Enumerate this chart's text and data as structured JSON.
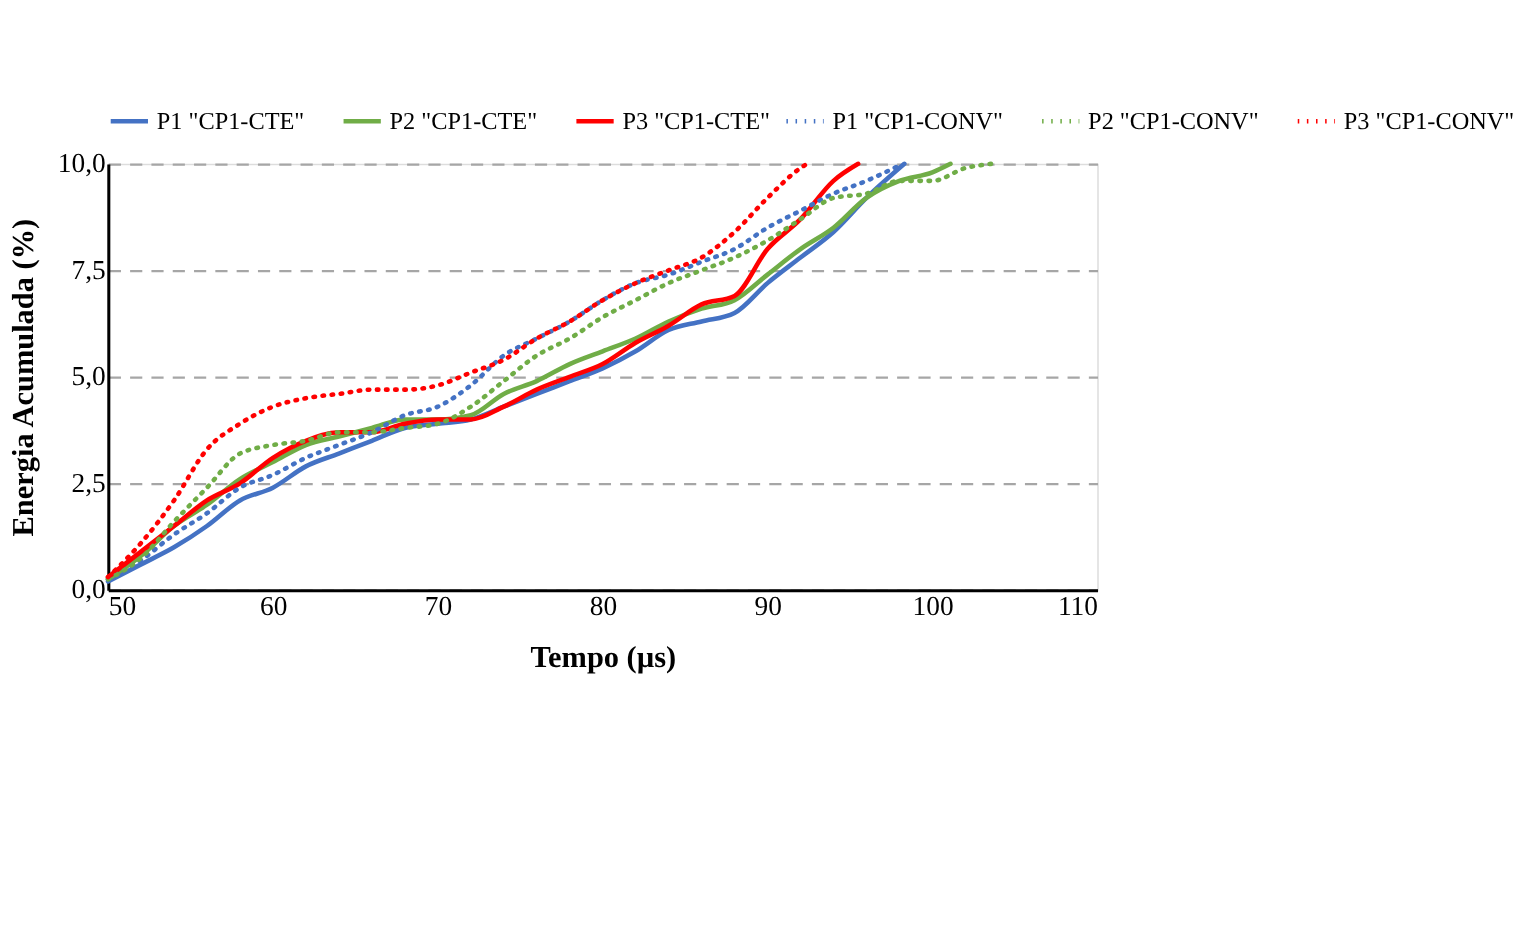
{
  "chart_data": {
    "type": "line",
    "xlabel": "Tempo (µs)",
    "ylabel": "Energia Acumulada (%)",
    "xlim": [
      50,
      110
    ],
    "xticks": [
      50,
      60,
      70,
      80,
      90,
      100,
      110
    ],
    "ylim": [
      0,
      10
    ],
    "yticks": [
      {
        "value": 0,
        "label": "0,0"
      },
      {
        "value": 2.5,
        "label": "2,5"
      },
      {
        "value": 5,
        "label": "5,0"
      },
      {
        "value": 7.5,
        "label": "7,5"
      },
      {
        "value": 10,
        "label": "10,0"
      }
    ],
    "grid": "y",
    "legend": "top",
    "marker": "none",
    "series": [
      {
        "name": "P1 \"CP1-CTE\"",
        "color": "#4472c4",
        "line_style": "solid",
        "x": [
          50,
          52,
          54,
          56,
          58,
          60,
          62,
          64,
          66,
          68,
          70,
          72,
          74,
          76,
          78,
          80,
          82,
          84,
          86,
          88,
          90,
          92,
          94,
          96,
          98.3
        ],
        "values": [
          0.2,
          0.6,
          1.0,
          1.5,
          2.1,
          2.4,
          2.9,
          3.2,
          3.5,
          3.8,
          3.9,
          4.0,
          4.3,
          4.6,
          4.9,
          5.2,
          5.6,
          6.1,
          6.3,
          6.5,
          7.2,
          7.8,
          8.4,
          9.2,
          10.0
        ]
      },
      {
        "name": "P2 \"CP1-CTE\"",
        "color": "#70ad47",
        "line_style": "solid",
        "x": [
          50,
          52,
          54,
          56,
          58,
          60,
          62,
          64,
          66,
          68,
          70,
          72,
          74,
          76,
          78,
          80,
          82,
          84,
          86,
          88,
          90,
          92,
          94,
          96,
          98,
          100,
          101.1
        ],
        "values": [
          0.25,
          0.8,
          1.5,
          2.0,
          2.6,
          3.0,
          3.4,
          3.6,
          3.8,
          4.0,
          4.0,
          4.1,
          4.6,
          4.9,
          5.3,
          5.6,
          5.9,
          6.3,
          6.6,
          6.8,
          7.4,
          8.0,
          8.5,
          9.2,
          9.6,
          9.8,
          10.0
        ]
      },
      {
        "name": "P3 \"CP1-CTE\"",
        "color": "#ff0000",
        "line_style": "solid",
        "x": [
          50,
          52,
          54,
          56,
          58,
          60,
          62,
          64,
          66,
          68,
          70,
          72,
          74,
          76,
          78,
          80,
          82,
          84,
          86,
          88,
          90,
          92,
          94,
          95.5
        ],
        "values": [
          0.3,
          0.9,
          1.5,
          2.1,
          2.5,
          3.1,
          3.5,
          3.7,
          3.7,
          3.9,
          4.0,
          4.0,
          4.3,
          4.7,
          5.0,
          5.3,
          5.8,
          6.2,
          6.7,
          6.9,
          8.0,
          8.7,
          9.6,
          10.0
        ]
      },
      {
        "name": "P1 \"CP1-CONV\"",
        "color": "#4472c4",
        "line_style": "dotted",
        "x": [
          50,
          52,
          54,
          56,
          58,
          60,
          62,
          64,
          66,
          68,
          70,
          72,
          74,
          76,
          78,
          80,
          82,
          84,
          86,
          88,
          90,
          92,
          94,
          96,
          98.2
        ],
        "values": [
          0.25,
          0.7,
          1.3,
          1.8,
          2.4,
          2.7,
          3.1,
          3.4,
          3.7,
          4.1,
          4.3,
          4.8,
          5.5,
          5.9,
          6.3,
          6.8,
          7.2,
          7.4,
          7.7,
          8.0,
          8.5,
          8.9,
          9.3,
          9.6,
          10.0
        ]
      },
      {
        "name": "P2 \"CP1-CONV\"",
        "color": "#70ad47",
        "line_style": "dotted",
        "x": [
          50,
          52,
          54,
          56,
          58,
          60,
          62,
          64,
          66,
          68,
          70,
          72,
          74,
          76,
          78,
          80,
          82,
          84,
          86,
          88,
          90,
          92,
          94,
          96,
          98,
          100,
          102,
          103.6
        ],
        "values": [
          0.25,
          0.75,
          1.6,
          2.4,
          3.2,
          3.4,
          3.5,
          3.7,
          3.7,
          3.8,
          3.9,
          4.3,
          4.9,
          5.5,
          5.9,
          6.4,
          6.8,
          7.2,
          7.5,
          7.8,
          8.2,
          8.7,
          9.2,
          9.3,
          9.6,
          9.6,
          9.9,
          10.0
        ]
      },
      {
        "name": "P3 \"CP1-CONV\"",
        "color": "#ff0000",
        "line_style": "dotted",
        "x": [
          50,
          52,
          54,
          56,
          58,
          60,
          62,
          64,
          66,
          68,
          70,
          72,
          74,
          76,
          78,
          80,
          82,
          84,
          86,
          88,
          90,
          92,
          92.4
        ],
        "values": [
          0.3,
          1.1,
          2.1,
          3.3,
          3.9,
          4.3,
          4.5,
          4.6,
          4.7,
          4.7,
          4.8,
          5.1,
          5.4,
          5.9,
          6.3,
          6.8,
          7.2,
          7.5,
          7.8,
          8.4,
          9.2,
          9.9,
          10.0
        ]
      }
    ]
  }
}
